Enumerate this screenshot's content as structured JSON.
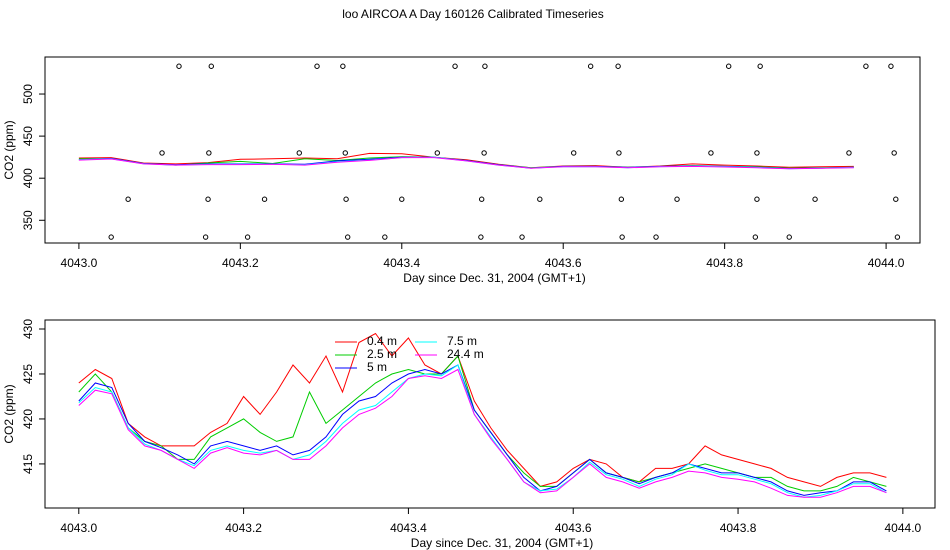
{
  "chart_data": [
    {
      "type": "line",
      "title": "loo AIRCOA A  Day 160126  Calibrated Timeseries",
      "x_label": "Day since Dec. 31, 2004 (GMT+1)",
      "y_label": "CO2 (ppm)",
      "xlim": [
        4042.958,
        4044.042
      ],
      "ylim": [
        323,
        544
      ],
      "xticks": [
        {
          "value": 4043,
          "label": "4043.0"
        },
        4043.2,
        4043.4,
        4043.6,
        4043.8,
        {
          "value": 4044,
          "label": "4044.0"
        }
      ],
      "yticks": [
        350,
        400,
        450,
        500
      ],
      "x": [
        4043.0,
        4043.04,
        4043.08,
        4043.12,
        4043.16,
        4043.2,
        4043.24,
        4043.28,
        4043.32,
        4043.36,
        4043.4,
        4043.44,
        4043.48,
        4043.52,
        4043.56,
        4043.6,
        4043.64,
        4043.68,
        4043.72,
        4043.76,
        4043.8,
        4043.84,
        4043.88,
        4043.92,
        4043.96
      ],
      "series": [
        {
          "color": "#ff0000",
          "values": [
            424,
            424.5,
            418,
            417,
            418.5,
            422.5,
            423,
            424,
            423,
            429.5,
            429,
            425,
            422,
            416.5,
            412.5,
            414.5,
            415,
            413,
            414.5,
            417,
            415.5,
            414.5,
            413,
            413.5,
            414
          ]
        },
        {
          "color": "#00cd00",
          "values": [
            423,
            423,
            417.5,
            415.5,
            418,
            420,
            417.5,
            423,
            421,
            424,
            425.5,
            425,
            421,
            416,
            412.5,
            414,
            414,
            413,
            414,
            415,
            414,
            413.5,
            412,
            412.5,
            413
          ]
        },
        {
          "color": "#0000ff",
          "values": [
            422,
            423.5,
            417.5,
            416,
            417,
            417,
            417,
            416.5,
            420.5,
            422.5,
            425,
            425,
            421,
            416,
            412,
            414,
            414,
            412.8,
            414,
            414.5,
            414,
            413,
            411.5,
            412,
            413
          ]
        },
        {
          "color": "#00ffff",
          "values": [
            421.8,
            423,
            417.2,
            415.5,
            416.5,
            416.5,
            416.5,
            416,
            419.5,
            421.5,
            424.5,
            424.8,
            420.5,
            415.5,
            412,
            413.5,
            413.8,
            412.5,
            413.8,
            414.3,
            413.8,
            412.8,
            411.3,
            412,
            412.8
          ]
        },
        {
          "color": "#ff00ff",
          "values": [
            421.5,
            422.8,
            417,
            415.5,
            416.2,
            416.2,
            416.5,
            415.5,
            419,
            421.2,
            424.5,
            424.5,
            420.5,
            415.5,
            411.8,
            413.5,
            413.5,
            412.3,
            413.5,
            414,
            413.3,
            412.3,
            411.3,
            411.8,
            412.5
          ]
        }
      ],
      "points": {
        "x": [
          4043.124,
          4043.164,
          4043.295,
          4043.327,
          4043.466,
          4043.503,
          4043.634,
          4043.668,
          4043.805,
          4043.844,
          4043.975,
          4044.006,
          4043.103,
          4043.161,
          4043.273,
          4043.33,
          4043.444,
          4043.502,
          4043.613,
          4043.669,
          4043.783,
          4043.84,
          4043.954,
          4044.01,
          4043.061,
          4043.16,
          4043.23,
          4043.331,
          4043.4,
          4043.499,
          4043.571,
          4043.672,
          4043.741,
          4043.84,
          4043.912,
          4044.012,
          4043.04,
          4043.157,
          4043.209,
          4043.333,
          4043.379,
          4043.498,
          4043.549,
          4043.673,
          4043.715,
          4043.838,
          4043.88,
          4044.014
        ],
        "values": [
          533,
          533,
          533,
          533,
          533,
          533,
          533,
          533,
          533,
          533,
          533,
          533,
          430,
          430,
          430,
          430,
          430,
          430,
          430,
          430,
          430,
          430,
          430,
          430,
          375,
          375,
          375,
          375,
          375,
          375,
          375,
          375,
          375,
          375,
          375,
          375,
          330,
          330,
          330,
          330,
          330,
          330,
          330,
          330,
          330,
          330,
          330,
          330
        ]
      }
    },
    {
      "type": "line",
      "x_label": "Day since Dec. 31, 2004 (GMT+1)",
      "y_label": "CO2 (ppm)",
      "xlim": [
        4042.959,
        4044.039
      ],
      "ylim": [
        410.1,
        431
      ],
      "xticks": [
        {
          "value": 4043,
          "label": "4043.0"
        },
        4043.2,
        4043.4,
        4043.6,
        4043.8,
        {
          "value": 4044,
          "label": "4044.0"
        }
      ],
      "yticks": [
        415,
        420,
        425,
        430
      ],
      "x": [
        4043.0,
        4043.02,
        4043.04,
        4043.06,
        4043.08,
        4043.1,
        4043.12,
        4043.14,
        4043.16,
        4043.18,
        4043.2,
        4043.22,
        4043.24,
        4043.26,
        4043.28,
        4043.3,
        4043.32,
        4043.34,
        4043.36,
        4043.38,
        4043.4,
        4043.42,
        4043.44,
        4043.46,
        4043.48,
        4043.5,
        4043.52,
        4043.54,
        4043.56,
        4043.58,
        4043.6,
        4043.62,
        4043.64,
        4043.66,
        4043.68,
        4043.7,
        4043.72,
        4043.74,
        4043.76,
        4043.78,
        4043.8,
        4043.82,
        4043.84,
        4043.86,
        4043.88,
        4043.9,
        4043.92,
        4043.94,
        4043.96,
        4043.98
      ],
      "series": [
        {
          "name": "0.4 m",
          "color": "#ff0000",
          "values": [
            424,
            425.5,
            424.5,
            419.5,
            418,
            417,
            417,
            417,
            418.5,
            419.5,
            422.5,
            420.5,
            423,
            426,
            424,
            427,
            423,
            428.5,
            429.5,
            427,
            429,
            426,
            425,
            427,
            422,
            419,
            416.5,
            414.5,
            412.5,
            413,
            414.5,
            415.5,
            415,
            413.5,
            413,
            414.5,
            414.5,
            415,
            417,
            416,
            415.5,
            415,
            414.5,
            413.5,
            413,
            412.5,
            413.5,
            414,
            414,
            413.5
          ]
        },
        {
          "name": "2.5 m",
          "color": "#00cd00",
          "values": [
            423,
            425,
            423,
            419,
            417.5,
            417,
            415.5,
            415.5,
            418,
            419,
            420,
            418.5,
            417.5,
            418,
            423,
            419.5,
            421,
            422.5,
            424,
            425,
            425.5,
            425,
            425,
            427,
            421,
            418.5,
            416,
            414,
            412.5,
            412.5,
            414,
            415.5,
            414,
            413.5,
            413,
            413.5,
            414,
            414.5,
            415,
            414.5,
            414,
            413.5,
            413.5,
            412.5,
            412,
            412,
            412.5,
            413.5,
            413,
            412.5
          ]
        },
        {
          "name": "5 m",
          "color": "#0000ff",
          "values": [
            422,
            424,
            423.5,
            419.5,
            417.5,
            416.8,
            416,
            415,
            417,
            417.5,
            417,
            416.5,
            417,
            416,
            416.5,
            418,
            420.5,
            422,
            422.5,
            424,
            425,
            425.5,
            425,
            426,
            421,
            418.5,
            416,
            413.5,
            412,
            412.5,
            414,
            415.5,
            414,
            413.5,
            412.8,
            413.5,
            414,
            415,
            414.5,
            414,
            414,
            413.5,
            413,
            412,
            411.5,
            411.8,
            412,
            413,
            413,
            412
          ]
        },
        {
          "name": "7.5 m",
          "color": "#00ffff",
          "values": [
            421.8,
            423.5,
            423,
            419,
            417.2,
            416.5,
            415.5,
            414.8,
            416.5,
            417,
            416.5,
            416.2,
            416.5,
            415.5,
            416,
            417.5,
            419.5,
            421,
            421.5,
            423,
            424.5,
            425,
            424.8,
            426,
            420.5,
            418,
            415.5,
            413,
            412,
            412.2,
            413.5,
            415.2,
            413.8,
            413.3,
            412.5,
            413.3,
            413.8,
            415,
            414.3,
            413.8,
            413.8,
            413.3,
            412.8,
            411.8,
            411.3,
            411.5,
            412,
            412.8,
            412.8,
            411.8
          ]
        },
        {
          "name": "24.4 m",
          "color": "#ff00ff",
          "values": [
            421.5,
            423.2,
            422.8,
            418.8,
            417,
            416.5,
            415.5,
            414.5,
            416.2,
            416.8,
            416.2,
            416,
            416.5,
            415.5,
            415.5,
            417,
            419,
            420.5,
            421.2,
            422.5,
            424.5,
            424.8,
            424.5,
            425.5,
            420.5,
            417.8,
            415.5,
            413,
            411.8,
            412,
            413.5,
            415,
            413.5,
            413,
            412.3,
            413,
            413.5,
            414.2,
            414,
            413.5,
            413.3,
            413,
            412.3,
            411.5,
            411.3,
            411.3,
            411.8,
            412.5,
            412.5,
            411.8
          ]
        }
      ]
    }
  ]
}
